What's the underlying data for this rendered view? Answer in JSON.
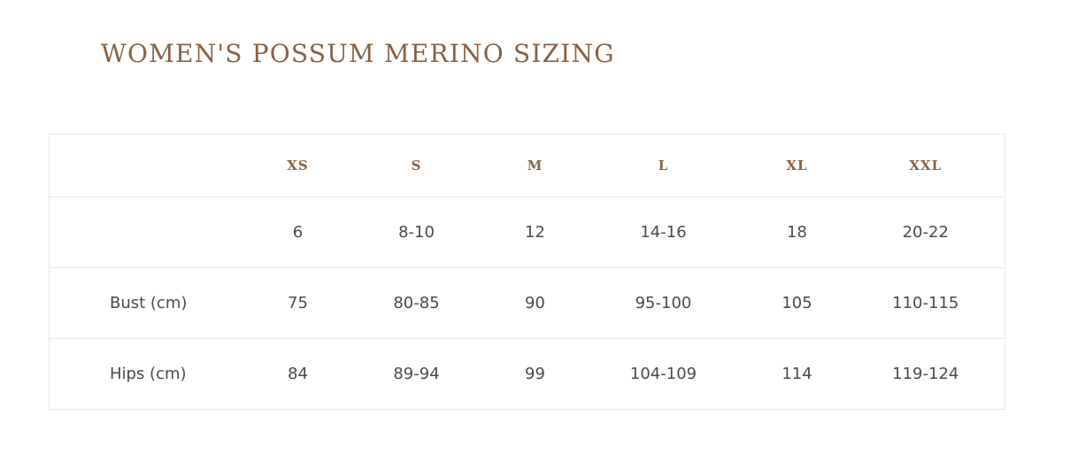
{
  "title": "WOMEN'S POSSUM MERINO SIZING",
  "table": {
    "headers": [
      "",
      "XS",
      "S",
      "M",
      "L",
      "XL",
      "XXL"
    ],
    "rows": [
      {
        "label": "",
        "values": [
          "6",
          "8-10",
          "12",
          "14-16",
          "18",
          "20-22"
        ]
      },
      {
        "label": "Bust (cm)",
        "values": [
          "75",
          "80-85",
          "90",
          "95-100",
          "105",
          "110-115"
        ]
      },
      {
        "label": "Hips (cm)",
        "values": [
          "84",
          "89-94",
          "99",
          "104-109",
          "114",
          "119-124"
        ]
      }
    ]
  },
  "colors": {
    "accent": "#8a6142",
    "text": "#4a4a4a",
    "border": "#e7e7e7"
  }
}
